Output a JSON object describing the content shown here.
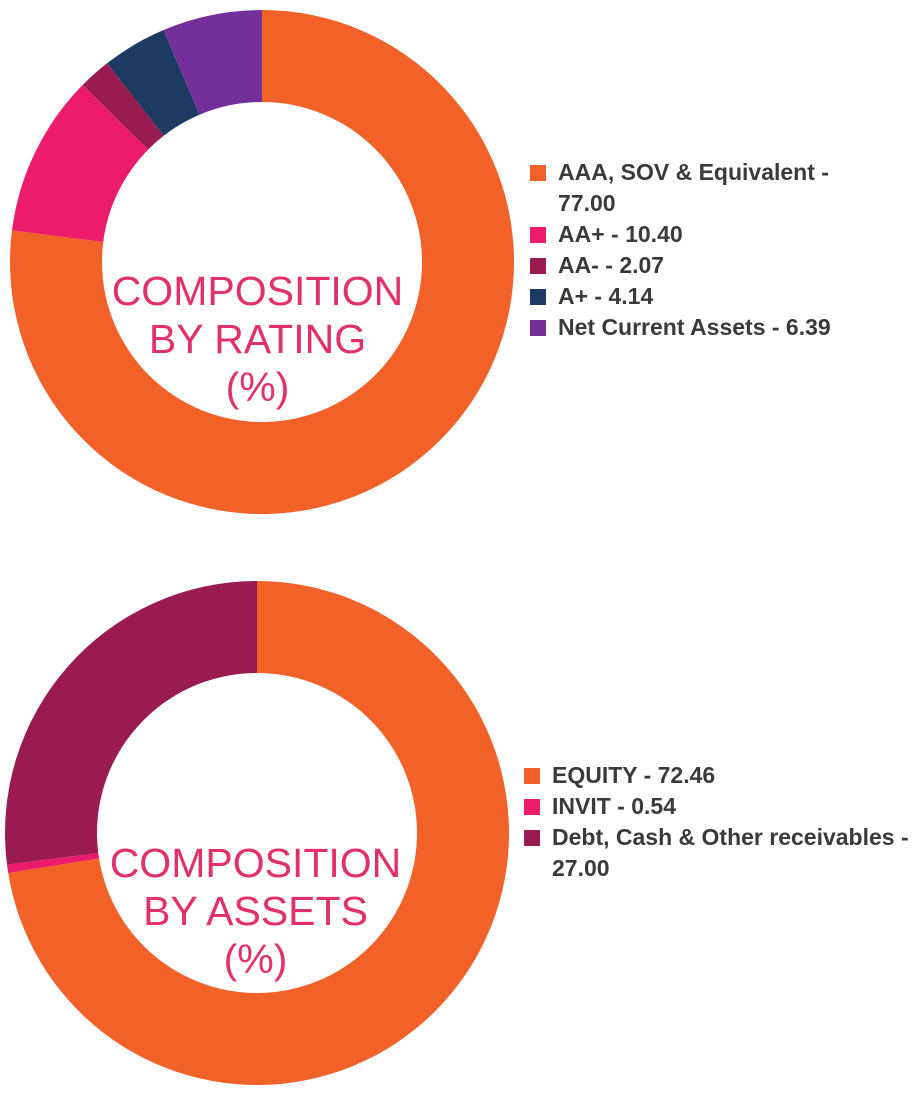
{
  "charts": [
    {
      "id": "rating",
      "title_lines": [
        "COMPOSITION",
        "BY RATING",
        "(%)"
      ],
      "title_color": "#e1306c",
      "chart_data": {
        "type": "pie",
        "categories": [
          "AAA, SOV & Equivalent",
          "AA+",
          "AA-",
          "A+",
          "Net Current Assets"
        ],
        "values": [
          77.0,
          10.4,
          2.07,
          4.14,
          6.39
        ],
        "colors": [
          "#f26128",
          "#ec1c6b",
          "#9a1b4f",
          "#1d3a63",
          "#73309a"
        ],
        "legend": [
          "AAA, SOV & Equivalent - 77.00",
          "AA+ - 10.40",
          "AA- - 2.07",
          "A+ - 4.14",
          "Net Current Assets - 6.39"
        ],
        "legend_position": "right",
        "donut": true
      }
    },
    {
      "id": "assets",
      "title_lines": [
        "COMPOSITION",
        "BY ASSETS",
        "(%)"
      ],
      "title_color": "#e1306c",
      "chart_data": {
        "type": "pie",
        "categories": [
          "EQUITY",
          "INVIT",
          "Debt, Cash & Other receivables"
        ],
        "values": [
          72.46,
          0.54,
          27.0
        ],
        "colors": [
          "#f26128",
          "#ec1c6b",
          "#9a1b4f"
        ],
        "legend": [
          "EQUITY - 72.46",
          "INVIT - 0.54",
          "Debt, Cash & Other receivables - 27.00"
        ],
        "legend_position": "right",
        "donut": true
      }
    }
  ]
}
